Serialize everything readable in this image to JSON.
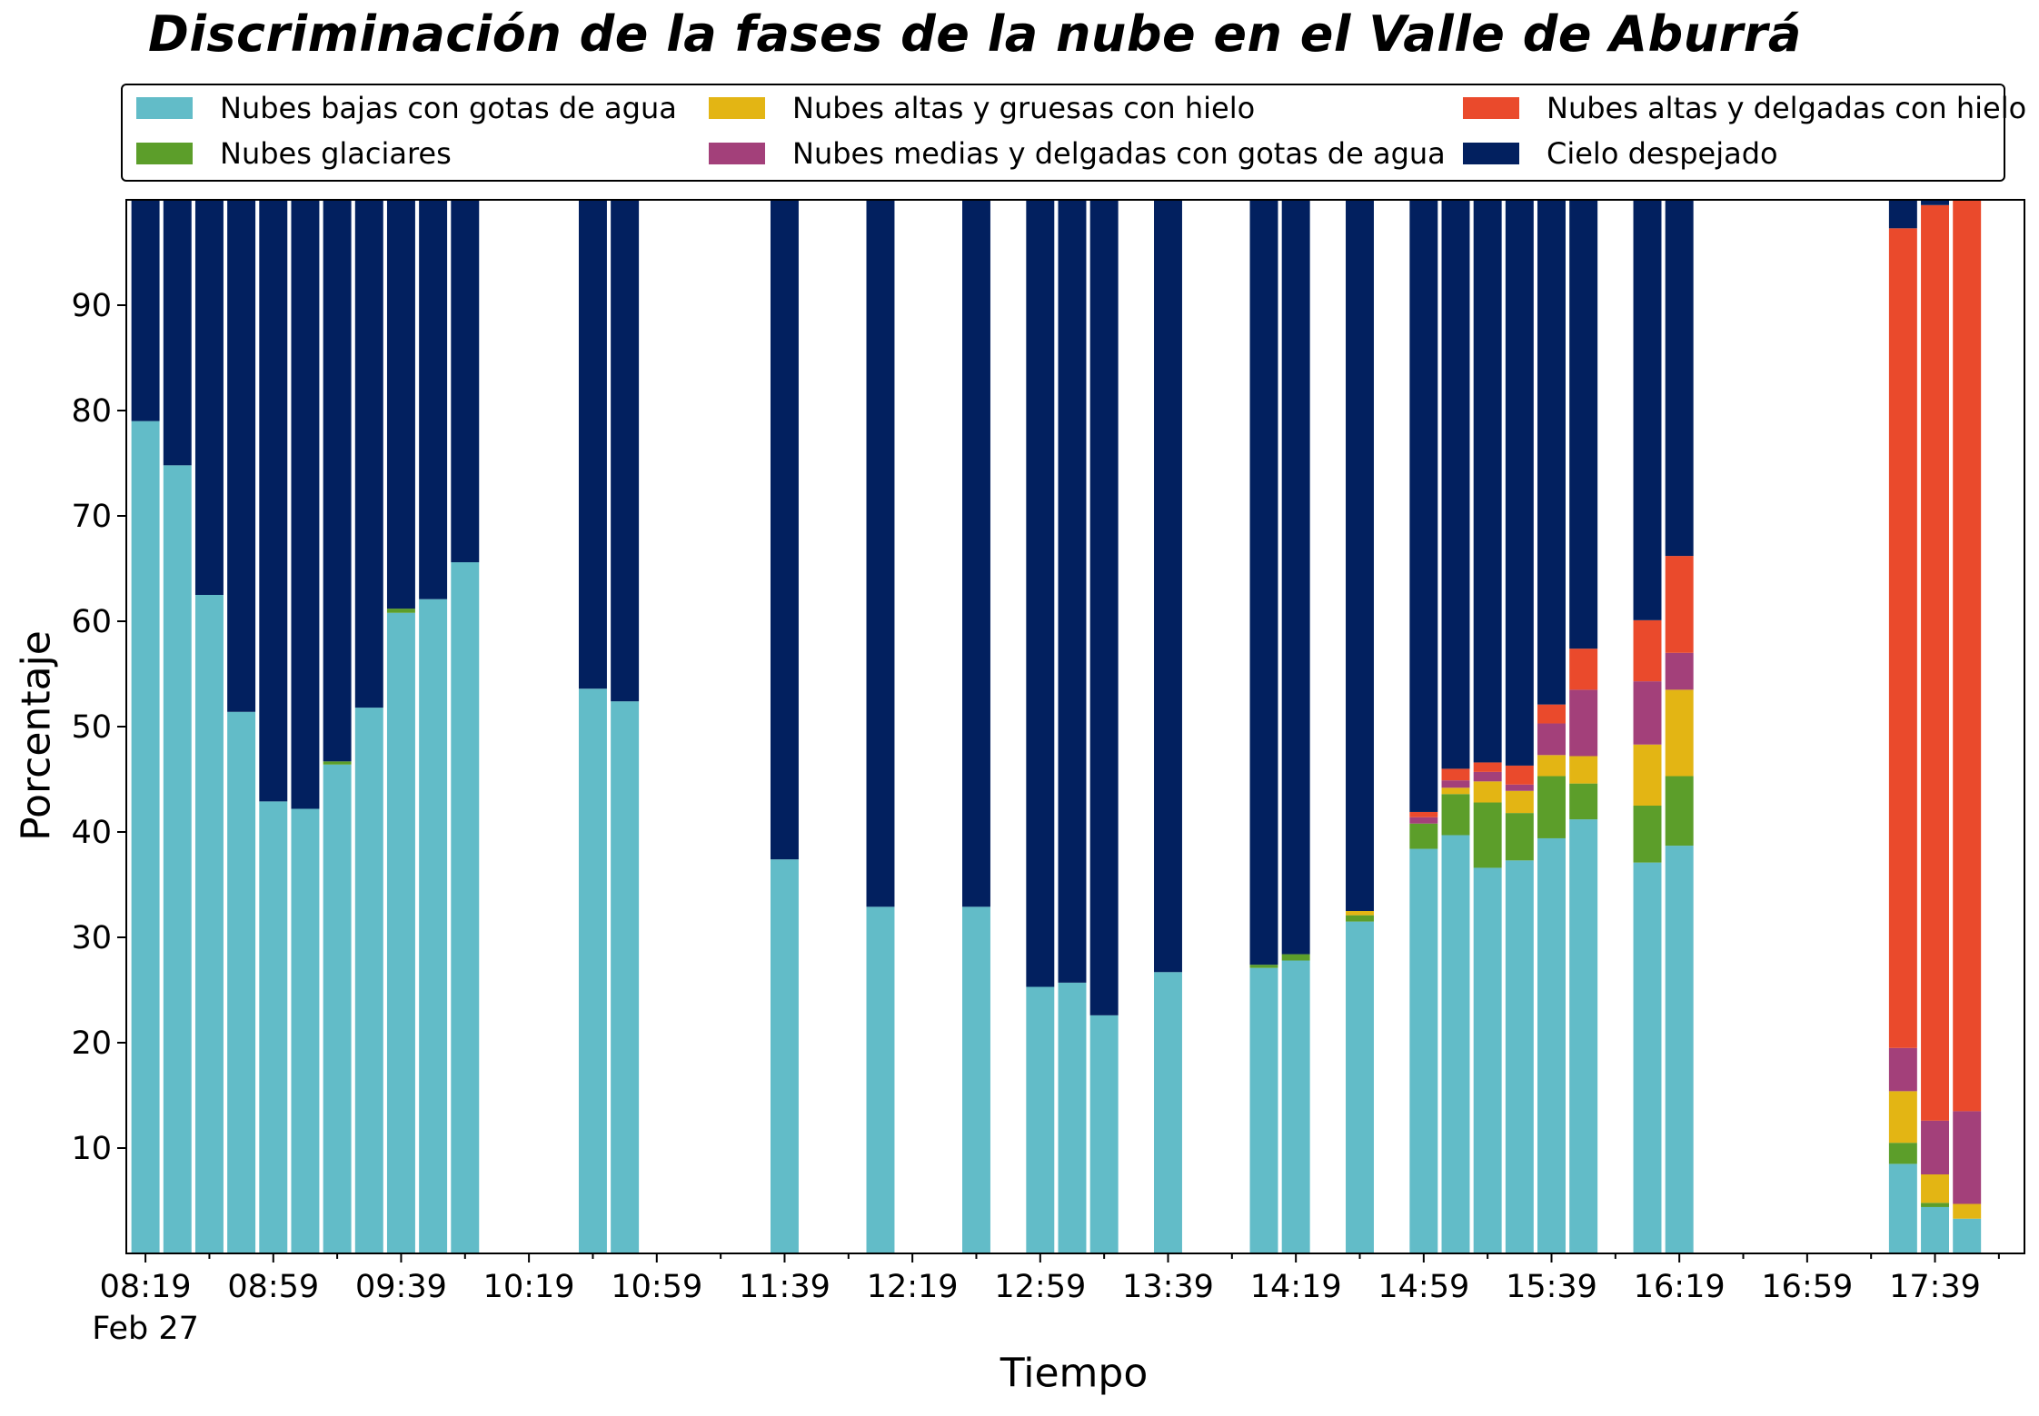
{
  "chart_data": {
    "type": "bar",
    "stacked": true,
    "title": "Discriminación de la fases de la nube en el Valle de Aburrá",
    "xlabel": "Tiempo",
    "ylabel": "Porcentaje",
    "ylim": [
      0,
      100
    ],
    "yticks": [
      10,
      20,
      30,
      40,
      50,
      60,
      70,
      80,
      90
    ],
    "x_minutes_range": [
      "08:13",
      "18:07"
    ],
    "xticks": [
      {
        "time": "08:19",
        "label": "08:19",
        "sublabel": "Feb 27"
      },
      {
        "time": "08:59",
        "label": "08:59"
      },
      {
        "time": "09:39",
        "label": "09:39"
      },
      {
        "time": "10:19",
        "label": "10:19"
      },
      {
        "time": "10:59",
        "label": "10:59"
      },
      {
        "time": "11:39",
        "label": "11:39"
      },
      {
        "time": "12:19",
        "label": "12:19"
      },
      {
        "time": "12:59",
        "label": "12:59"
      },
      {
        "time": "13:39",
        "label": "13:39"
      },
      {
        "time": "14:19",
        "label": "14:19"
      },
      {
        "time": "14:59",
        "label": "14:59"
      },
      {
        "time": "15:39",
        "label": "15:39"
      },
      {
        "time": "16:19",
        "label": "16:19"
      },
      {
        "time": "16:59",
        "label": "16:59"
      },
      {
        "time": "17:39",
        "label": "17:39"
      }
    ],
    "times": [
      "08:19",
      "08:29",
      "08:39",
      "08:49",
      "08:59",
      "09:09",
      "09:19",
      "09:29",
      "09:39",
      "09:49",
      "09:59",
      "10:39",
      "10:49",
      "11:39",
      "12:09",
      "12:39",
      "12:59",
      "13:09",
      "13:19",
      "13:39",
      "14:09",
      "14:19",
      "14:39",
      "14:59",
      "15:09",
      "15:19",
      "15:29",
      "15:39",
      "15:49",
      "16:09",
      "16:19",
      "17:29",
      "17:39",
      "17:49"
    ],
    "series": [
      {
        "name": "Nubes bajas con gotas de agua",
        "values": [
          79,
          74.8,
          62.5,
          51.4,
          42.9,
          42.2,
          46.4,
          51.8,
          60.8,
          62.1,
          65.6,
          53.6,
          52.4,
          37.4,
          32.9,
          32.9,
          25.3,
          25.7,
          22.6,
          26.7,
          27.1,
          27.8,
          31.5,
          38.4,
          39.7,
          36.6,
          37.3,
          39.4,
          41.2,
          37.1,
          38.7,
          8.5,
          4.4,
          3.3
        ]
      },
      {
        "name": "Nubes glaciares",
        "values": [
          0,
          0,
          0,
          0,
          0,
          0,
          0.3,
          0,
          0.4,
          0,
          0,
          0,
          0,
          0,
          0,
          0,
          0,
          0,
          0,
          0,
          0.3,
          0.6,
          0.6,
          2.4,
          3.9,
          6.2,
          4.5,
          5.9,
          3.4,
          5.4,
          6.6,
          2,
          0.4,
          0
        ]
      },
      {
        "name": "Nubes altas y gruesas con hielo",
        "values": [
          0,
          0,
          0,
          0,
          0,
          0,
          0,
          0,
          0,
          0,
          0,
          0,
          0,
          0,
          0,
          0,
          0,
          0,
          0,
          0,
          0,
          0,
          0.4,
          0,
          0.6,
          2,
          2.1,
          2,
          2.6,
          5.8,
          8.2,
          4.9,
          2.7,
          1.4
        ]
      },
      {
        "name": "Nubes medias y delgadas con gotas de agua",
        "values": [
          0,
          0,
          0,
          0,
          0,
          0,
          0,
          0,
          0,
          0,
          0,
          0,
          0,
          0,
          0,
          0,
          0,
          0,
          0,
          0,
          0,
          0,
          0,
          0.6,
          0.7,
          0.9,
          0.6,
          3,
          6.3,
          6,
          3.5,
          4.1,
          5.1,
          8.8
        ]
      },
      {
        "name": "Nubes altas y delgadas con hielo",
        "values": [
          0,
          0,
          0,
          0,
          0,
          0,
          0,
          0,
          0,
          0,
          0,
          0,
          0,
          0,
          0,
          0,
          0,
          0,
          0,
          0,
          0,
          0,
          0,
          0.5,
          1.1,
          0.9,
          1.8,
          1.8,
          3.9,
          5.8,
          9.2,
          77.8,
          86.9,
          86.5
        ]
      },
      {
        "name": "Cielo despejado",
        "values": [
          21,
          25.2,
          37.5,
          48.6,
          57.1,
          57.8,
          53.3,
          48.2,
          38.8,
          37.9,
          34.4,
          46.4,
          47.6,
          62.6,
          67.1,
          67.1,
          74.7,
          74.3,
          77.4,
          73.3,
          72.6,
          71.6,
          67.5,
          58.1,
          54,
          53.4,
          53.7,
          47.9,
          42.6,
          39.9,
          33.8,
          2.7,
          0.5,
          0
        ]
      }
    ],
    "colors": [
      "#62bcc8",
      "#5c9e2a",
      "#e3b514",
      "#a3407a",
      "#ea4a2c",
      "#02205f"
    ],
    "legend_position": "top"
  },
  "legend_entries": [
    {
      "label": "Nubes bajas con gotas de agua",
      "color": "#62bcc8"
    },
    {
      "label": "Nubes altas y gruesas con hielo",
      "color": "#e3b514"
    },
    {
      "label": "Nubes altas y delgadas con hielo",
      "color": "#ea4a2c"
    },
    {
      "label": "Nubes glaciares",
      "color": "#5c9e2a"
    },
    {
      "label": "Nubes medias y delgadas con gotas de agua",
      "color": "#a3407a"
    },
    {
      "label": "Cielo despejado",
      "color": "#02205f"
    }
  ]
}
